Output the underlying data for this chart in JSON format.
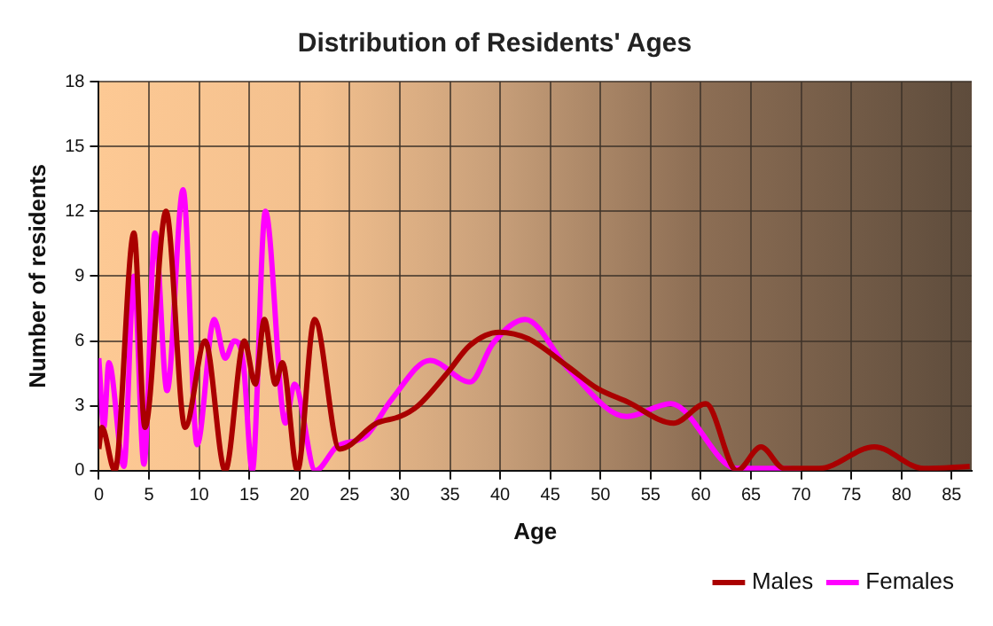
{
  "chart_data": {
    "type": "line",
    "title": "Distribution of Residents' Ages",
    "xlabel": "Age",
    "ylabel": "Number of residents",
    "xlim": [
      0,
      87
    ],
    "xticks": [
      0,
      5,
      10,
      15,
      20,
      25,
      30,
      35,
      40,
      45,
      50,
      55,
      60,
      65,
      70,
      75,
      80,
      85
    ],
    "ylim": [
      0,
      18
    ],
    "yticks": [
      0,
      3,
      6,
      9,
      12,
      15,
      18
    ],
    "grid": true,
    "legend": "bottom right",
    "marker": "none",
    "line_style": "solid",
    "series": [
      {
        "name": "Males",
        "color": "#aa0000",
        "x": [
          0,
          0.3,
          1.6,
          3.5,
          4.6,
          6.7,
          8.6,
          10.6,
          12.6,
          14.5,
          15.6,
          16.5,
          17.6,
          18.3,
          19.8,
          21.5,
          24,
          27.7,
          30,
          31.8,
          34.7,
          37,
          39.9,
          42.8,
          46.8,
          49.7,
          52.6,
          57.3,
          60.5,
          63.6,
          66,
          68.3,
          71.8,
          77.3,
          82.2,
          86.8
        ],
        "values": [
          1,
          2,
          0,
          11,
          2,
          12,
          2,
          6,
          0,
          6,
          4,
          7,
          4,
          5,
          0,
          7,
          1,
          2.2,
          2.5,
          3,
          4.5,
          5.8,
          6.4,
          6.1,
          4.8,
          3.8,
          3.2,
          2.2,
          3.1,
          0,
          1.1,
          0.1,
          0.1,
          1.1,
          0.1,
          0.2
        ]
      },
      {
        "name": "Females",
        "color": "#ff00ff",
        "x": [
          0,
          0.5,
          1,
          2.5,
          3.5,
          4.5,
          5.6,
          6.8,
          8.4,
          9.8,
          11.5,
          12.6,
          13.5,
          14.4,
          15.3,
          16.6,
          18.6,
          19.5,
          21.6,
          23.7,
          26.6,
          29.2,
          33,
          37,
          39.3,
          42.5,
          46.8,
          52.6,
          57,
          63.6,
          68.3,
          70
        ],
        "values": [
          5.2,
          2,
          5,
          0.2,
          9,
          0.3,
          11,
          3.7,
          13,
          1.2,
          7,
          5.2,
          6,
          5,
          0,
          12,
          2.2,
          4,
          0,
          1.1,
          1.6,
          3.3,
          5.1,
          4.1,
          5.9,
          7,
          4.7,
          2.5,
          3.1,
          0.1,
          0.1,
          0
        ]
      }
    ]
  }
}
